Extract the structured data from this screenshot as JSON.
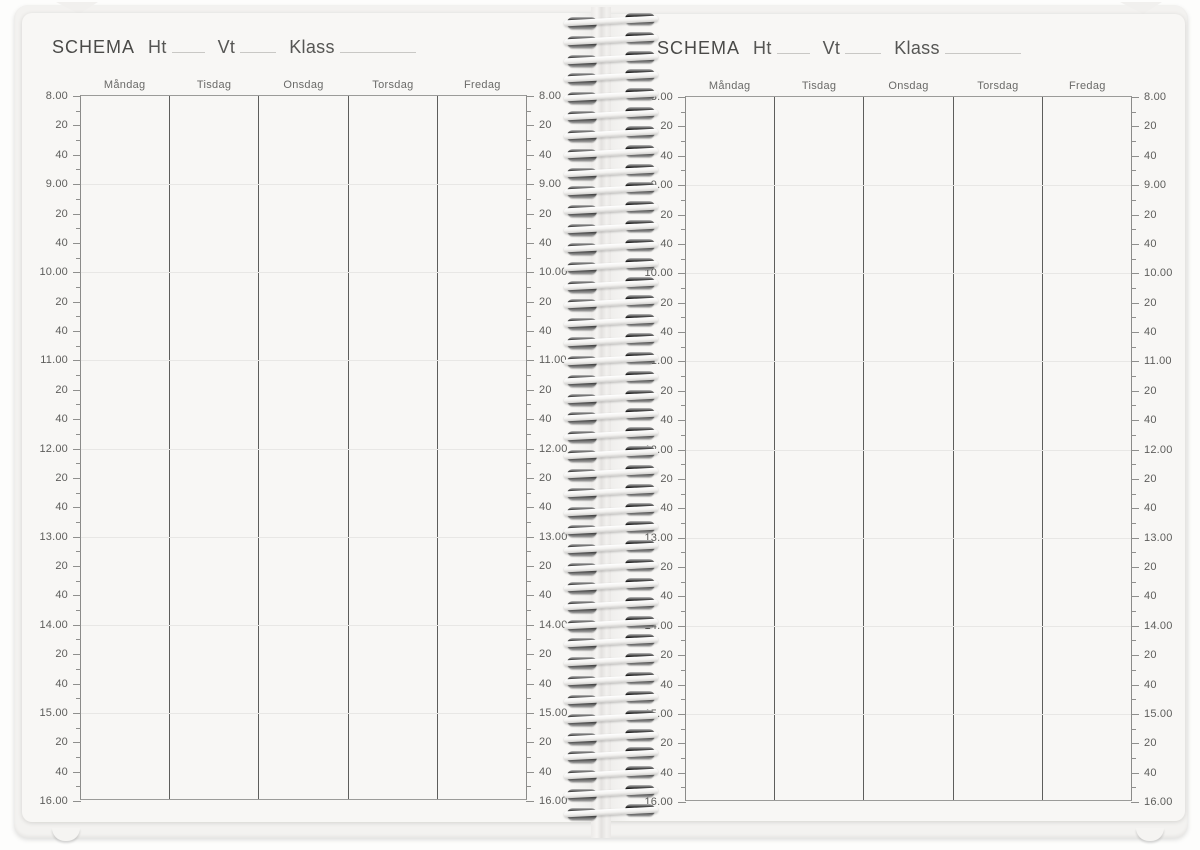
{
  "book": {
    "title": "SCHEMA",
    "fields": [
      {
        "label": "Ht"
      },
      {
        "label": "Vt"
      },
      {
        "label": "Klass"
      }
    ],
    "days": [
      "Måndag",
      "Tisdag",
      "Onsdag",
      "Torsdag",
      "Fredag"
    ],
    "time_labels": [
      "8.00",
      "20",
      "40",
      "9.00",
      "20",
      "40",
      "10.00",
      "20",
      "40",
      "11.00",
      "20",
      "40",
      "12.00",
      "20",
      "40",
      "13.00",
      "20",
      "40",
      "14.00",
      "20",
      "40",
      "15.00",
      "20",
      "40",
      "16.00"
    ],
    "time_start": "8.00",
    "time_end": "16.00"
  },
  "colors": {
    "paper": "#f8f7f5",
    "ink": "#4a4a48",
    "ink2": "#565654",
    "daytext": "#6a6a68",
    "timetext": "#5d5d5b",
    "divider": "#5e5e5c",
    "axis": "#9b9b99",
    "axis2": "#8b8b89",
    "faint": "#e8e7e5",
    "tickc": "#8f8f8d",
    "uline": "#c9c8c5"
  }
}
